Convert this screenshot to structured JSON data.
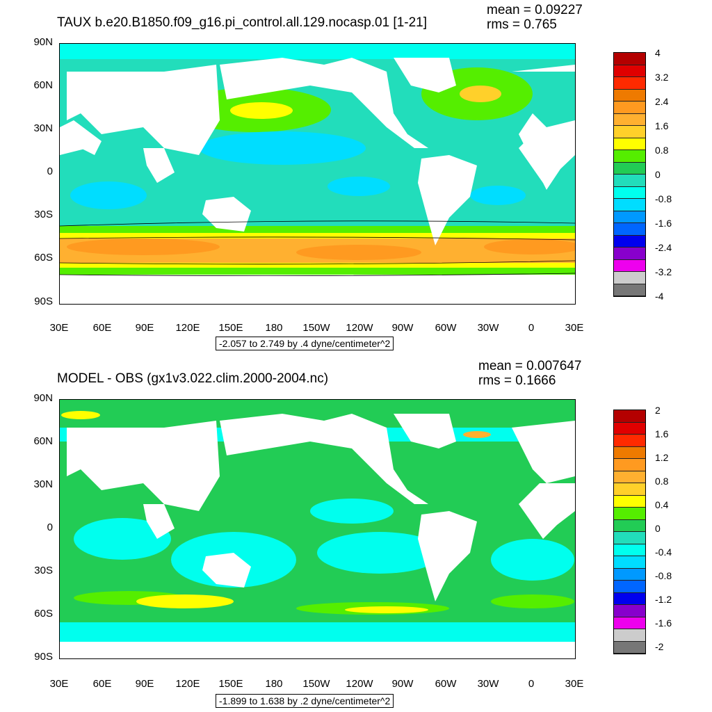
{
  "panels": [
    {
      "title": "TAUX b.e20.B1850.f09_g16.pi_control.all.129.nocasp.01 [1-21]",
      "mean": "mean = 0.09227",
      "rms": "rms = 0.765",
      "lat_labels": [
        "90N",
        "60N",
        "30N",
        "0",
        "30S",
        "60S",
        "90S"
      ],
      "lon_labels": [
        "30E",
        "60E",
        "90E",
        "120E",
        "150E",
        "180",
        "150W",
        "120W",
        "90W",
        "60W",
        "30W",
        "0",
        "30E"
      ],
      "range": "-2.057 to 2.749 by .4 dyne/centimeter^2",
      "colorbar_labels": [
        "4",
        "3.2",
        "2.4",
        "1.6",
        "0.8",
        "0",
        "-0.8",
        "-1.6",
        "-2.4",
        "-3.2",
        "-4"
      ],
      "colorbar_colors": [
        "#b40000",
        "#e00000",
        "#ff2a00",
        "#ee7a00",
        "#ff9a20",
        "#ffb030",
        "#ffd02a",
        "#ffff00",
        "#55ee00",
        "#22cc55",
        "#22ddbb",
        "#00ffee",
        "#00ddff",
        "#0099ff",
        "#0066ff",
        "#0000ee",
        "#8800cc",
        "#ee00ee",
        "#cccccc",
        "#777777"
      ]
    },
    {
      "title": "MODEL - OBS (gx1v3.022.clim.2000-2004.nc)",
      "mean": "mean = 0.007647",
      "rms": "rms = 0.1666",
      "lat_labels": [
        "90N",
        "60N",
        "30N",
        "0",
        "30S",
        "60S",
        "90S"
      ],
      "lon_labels": [
        "30E",
        "60E",
        "90E",
        "120E",
        "150E",
        "180",
        "150W",
        "120W",
        "90W",
        "60W",
        "30W",
        "0",
        "30E"
      ],
      "range": "-1.899 to 1.638 by .2 dyne/centimeter^2",
      "colorbar_labels": [
        "2",
        "1.6",
        "1.2",
        "0.8",
        "0.4",
        "0",
        "-0.4",
        "-0.8",
        "-1.2",
        "-1.6",
        "-2"
      ],
      "colorbar_colors": [
        "#b40000",
        "#e00000",
        "#ff2a00",
        "#ee7a00",
        "#ff9a20",
        "#ffb030",
        "#ffd02a",
        "#ffff00",
        "#55ee00",
        "#22cc55",
        "#22ddbb",
        "#00ffee",
        "#00ddff",
        "#0099ff",
        "#0066ff",
        "#0000ee",
        "#8800cc",
        "#ee00ee",
        "#cccccc",
        "#777777"
      ]
    }
  ]
}
